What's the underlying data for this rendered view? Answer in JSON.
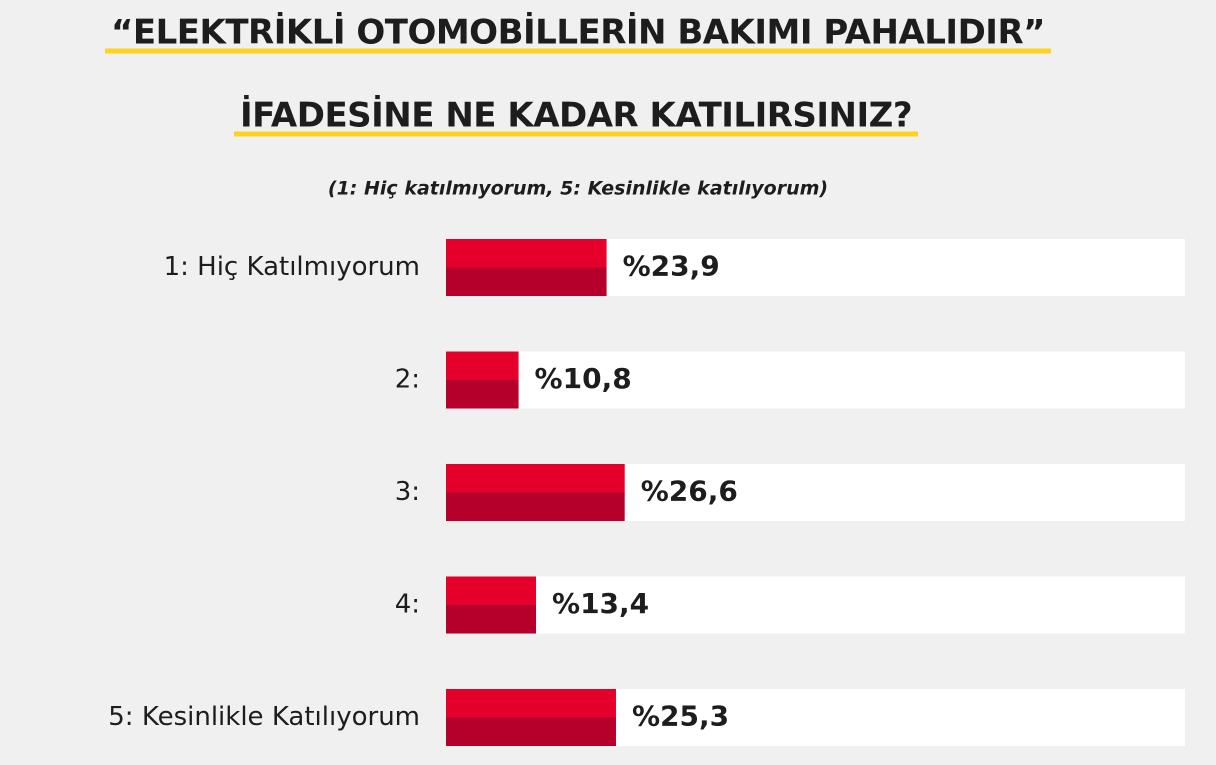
{
  "chart_data": {
    "type": "bar",
    "orientation": "horizontal",
    "title": [
      "“ELEKTRİKLİ OTOMOBİLLERİN BAKIMI PAHALIDIR”",
      "İFADESİNE NE KADAR KATILIRSINIZ?"
    ],
    "subtitle": "(1: Hiç katılmıyorum, 5: Kesinlikle katılıyorum)",
    "categories": [
      "1: Hiç Katılmıyorum",
      "2:",
      "3:",
      "4:",
      "5: Kesinlikle Katılıyorum"
    ],
    "values": [
      23.9,
      10.8,
      26.6,
      13.4,
      25.3
    ],
    "value_labels": [
      "%23,9",
      "%10,8",
      "%26,6",
      "%13,4",
      "%25,3"
    ],
    "color": "#e4002b",
    "shade_color": "#b4002a",
    "xlim": [
      0,
      110
    ]
  }
}
